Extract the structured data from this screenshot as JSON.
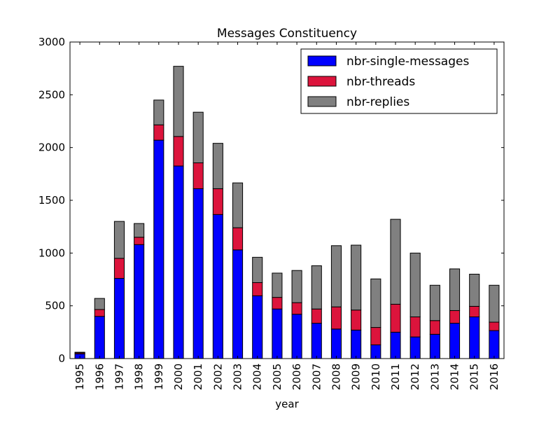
{
  "chart_data": {
    "type": "bar",
    "stacked": true,
    "title": "Messages Constituency",
    "xlabel": "year",
    "ylabel": "",
    "ylim": [
      0,
      3000
    ],
    "yticks": [
      0,
      500,
      1000,
      1500,
      2000,
      2500,
      3000
    ],
    "grid": false,
    "legend_position": "top-right",
    "categories": [
      "1995",
      "1996",
      "1997",
      "1998",
      "1999",
      "2000",
      "2001",
      "2002",
      "2003",
      "2004",
      "2005",
      "2006",
      "2007",
      "2008",
      "2009",
      "2010",
      "2011",
      "2012",
      "2013",
      "2014",
      "2015",
      "2016"
    ],
    "series": [
      {
        "name": "nbr-single-messages",
        "color": "#0000ff",
        "values": [
          45,
          400,
          760,
          1080,
          2070,
          1825,
          1610,
          1365,
          1030,
          595,
          470,
          420,
          335,
          280,
          270,
          130,
          250,
          205,
          230,
          335,
          395,
          265
        ]
      },
      {
        "name": "nbr-threads",
        "color": "#dc143c",
        "values": [
          10,
          65,
          190,
          70,
          145,
          280,
          245,
          245,
          210,
          125,
          110,
          110,
          135,
          210,
          190,
          165,
          265,
          190,
          130,
          120,
          100,
          80
        ]
      },
      {
        "name": "nbr-replies",
        "color": "#808080",
        "values": [
          5,
          105,
          350,
          130,
          235,
          665,
          480,
          430,
          425,
          240,
          230,
          305,
          410,
          580,
          615,
          460,
          805,
          605,
          335,
          395,
          305,
          350
        ]
      }
    ]
  }
}
